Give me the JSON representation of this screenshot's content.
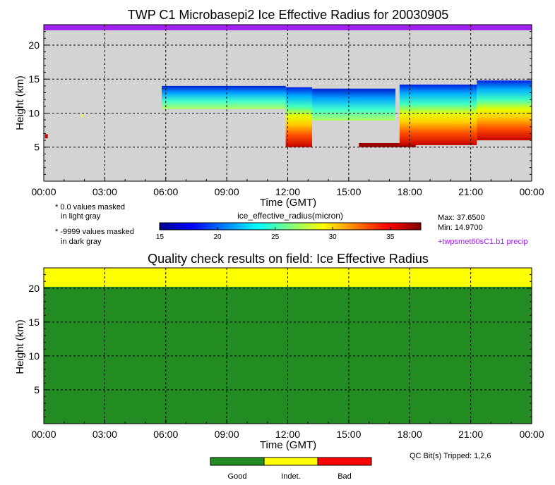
{
  "colors": {
    "panel_bg": "#d3d3d3",
    "purple": "#a020f0",
    "good": "#228b22",
    "indet": "#ffff00",
    "bad": "#ff0000",
    "grid": "#000000"
  },
  "notes": {
    "zero_masked_line1": "* 0.0 values masked",
    "zero_masked_line2": "in light gray",
    "neg_masked_line1": "* -9999 values masked",
    "neg_masked_line2": "in dark gray",
    "max": "Max: 37.6500",
    "min": "Min: 14.9700",
    "precip": "+twpsmet60sC1.b1 precip",
    "qc_bits": "QC Bit(s) Tripped: 1,2,6"
  },
  "colorbar": {
    "label": "ice_effective_radius(micron)",
    "ticks": [
      "15",
      "20",
      "25",
      "30",
      "35"
    ],
    "tick_values": [
      15,
      20,
      25,
      30,
      35
    ],
    "range": [
      14.97,
      37.65
    ]
  },
  "qc_legend": [
    "Good",
    "Indet.",
    "Bad"
  ],
  "chart_data": [
    {
      "type": "heatmap",
      "title": "TWP C1 Microbasepi2 Ice Effective Radius for 20030905",
      "xlabel": "Time (GMT)",
      "ylabel": "Height (km)",
      "xticks": [
        "00:00",
        "03:00",
        "06:00",
        "09:00",
        "12:00",
        "15:00",
        "18:00",
        "21:00",
        "00:00"
      ],
      "yticks": [
        "5",
        "10",
        "15",
        "20"
      ],
      "xlim": [
        0,
        24
      ],
      "ylim": [
        0,
        23
      ],
      "grid": true,
      "precip_flag": "entire day (purple bar at top)",
      "cloud_regions": [
        {
          "time_start": 0.05,
          "time_end": 0.2,
          "height_bottom": 6.3,
          "height_top": 6.9,
          "radius_micron": 36
        },
        {
          "time_start": 1.85,
          "time_end": 1.95,
          "height_bottom": 9.4,
          "height_top": 9.8,
          "radius_micron": 29
        },
        {
          "time_start": 5.8,
          "time_end": 11.9,
          "height_bottom": 10.6,
          "height_top": 14.0,
          "radius_micron": 18
        },
        {
          "time_start": 11.9,
          "time_end": 13.2,
          "height_bottom": 5.0,
          "height_top": 13.8,
          "radius_micron": 28
        },
        {
          "time_start": 13.2,
          "time_end": 17.3,
          "height_bottom": 8.9,
          "height_top": 13.6,
          "radius_micron": 23
        },
        {
          "time_start": 15.5,
          "time_end": 18.3,
          "height_bottom": 5.0,
          "height_top": 5.6,
          "radius_micron": 37
        },
        {
          "time_start": 17.5,
          "time_end": 21.3,
          "height_bottom": 5.3,
          "height_top": 14.2,
          "radius_micron": 27
        },
        {
          "time_start": 21.3,
          "time_end": 24.0,
          "height_bottom": 6.0,
          "height_top": 14.8,
          "radius_micron": 26
        }
      ]
    },
    {
      "type": "heatmap",
      "title": "Quality check results on field: Ice Effective Radius",
      "xlabel": "Time (GMT)",
      "ylabel": "Height (km)",
      "xticks": [
        "00:00",
        "03:00",
        "06:00",
        "09:00",
        "12:00",
        "15:00",
        "18:00",
        "21:00",
        "00:00"
      ],
      "yticks": [
        "5",
        "10",
        "15",
        "20"
      ],
      "xlim": [
        0,
        24
      ],
      "ylim": [
        0,
        23
      ],
      "grid": true,
      "qc_regions": [
        {
          "height_bottom": 0,
          "height_top": 20.2,
          "state": "Good"
        },
        {
          "height_bottom": 20.2,
          "height_top": 23,
          "state": "Indet."
        }
      ]
    }
  ]
}
